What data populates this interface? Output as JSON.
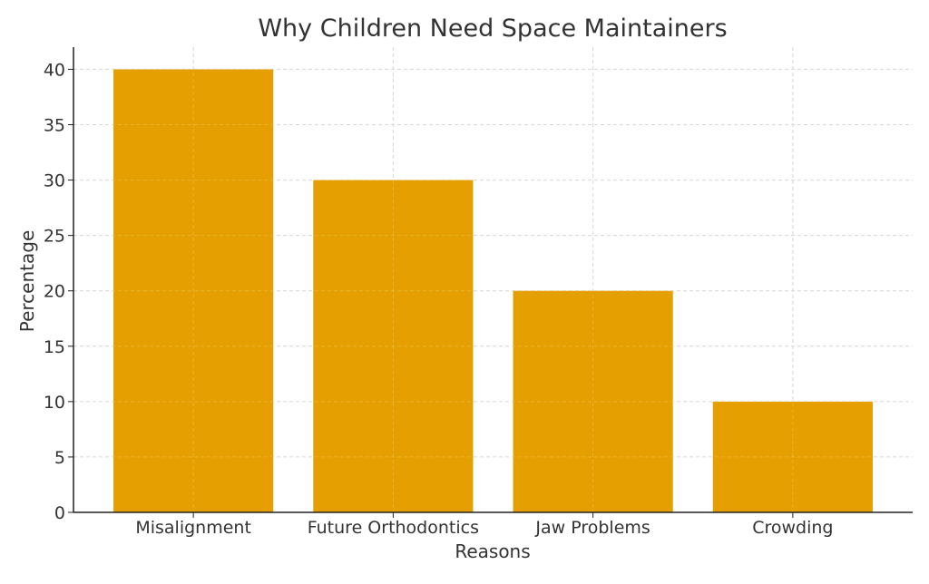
{
  "chart_data": {
    "type": "bar",
    "title": "Why Children Need Space Maintainers",
    "xlabel": "Reasons",
    "ylabel": "Percentage",
    "categories": [
      "Misalignment",
      "Future Orthodontics",
      "Jaw Problems",
      "Crowding"
    ],
    "values": [
      40,
      30,
      20,
      10
    ],
    "ylim": [
      0,
      42
    ],
    "yticks": [
      0,
      5,
      10,
      15,
      20,
      25,
      30,
      35,
      40
    ],
    "grid": true,
    "bar_color": "#E69F00"
  }
}
